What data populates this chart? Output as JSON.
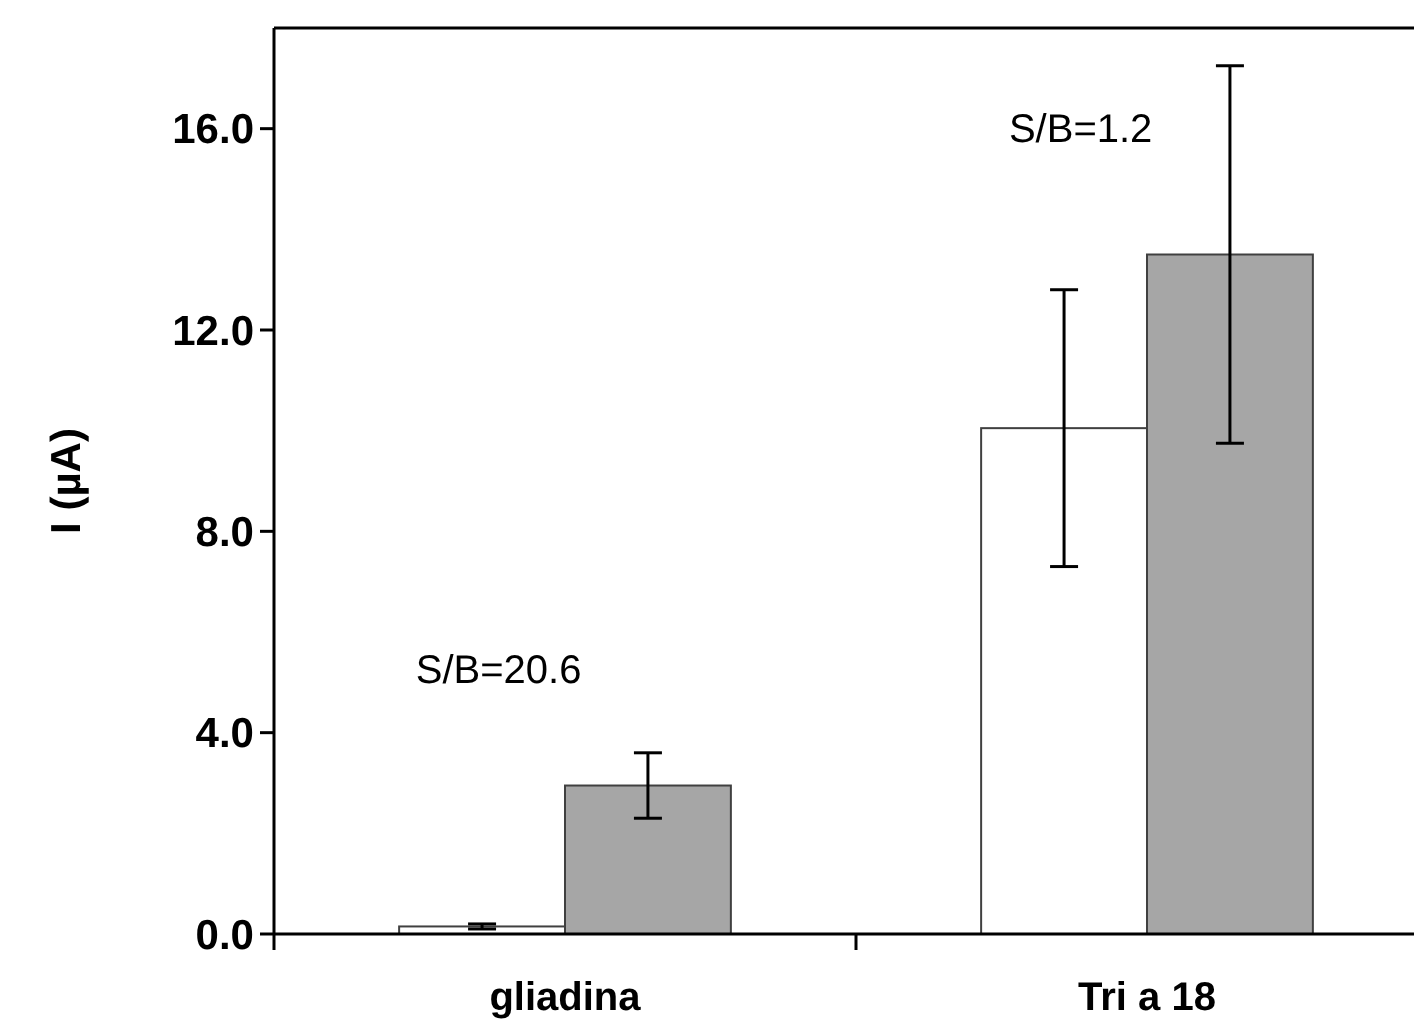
{
  "chart_data": {
    "type": "bar",
    "ylabel": "I (µA)",
    "categories": [
      "gliadina",
      "Tri a 18"
    ],
    "series": [
      {
        "color": "#ffffff",
        "values": [
          0.15,
          10.05
        ],
        "errors": [
          0.05,
          2.75
        ]
      },
      {
        "color": "#a6a6a6",
        "values": [
          2.95,
          13.5
        ],
        "errors": [
          0.65,
          3.75
        ]
      }
    ],
    "ylim": [
      0,
      18
    ],
    "yticks": [
      {
        "value": 0,
        "label": "0.0"
      },
      {
        "value": 4,
        "label": "4.0"
      },
      {
        "value": 8,
        "label": "8.0"
      },
      {
        "value": 12,
        "label": "12.0"
      },
      {
        "value": 16,
        "label": "16.0"
      }
    ],
    "annotations": [
      "S/B=20.6",
      "S/B=1.2"
    ],
    "grid": false
  }
}
